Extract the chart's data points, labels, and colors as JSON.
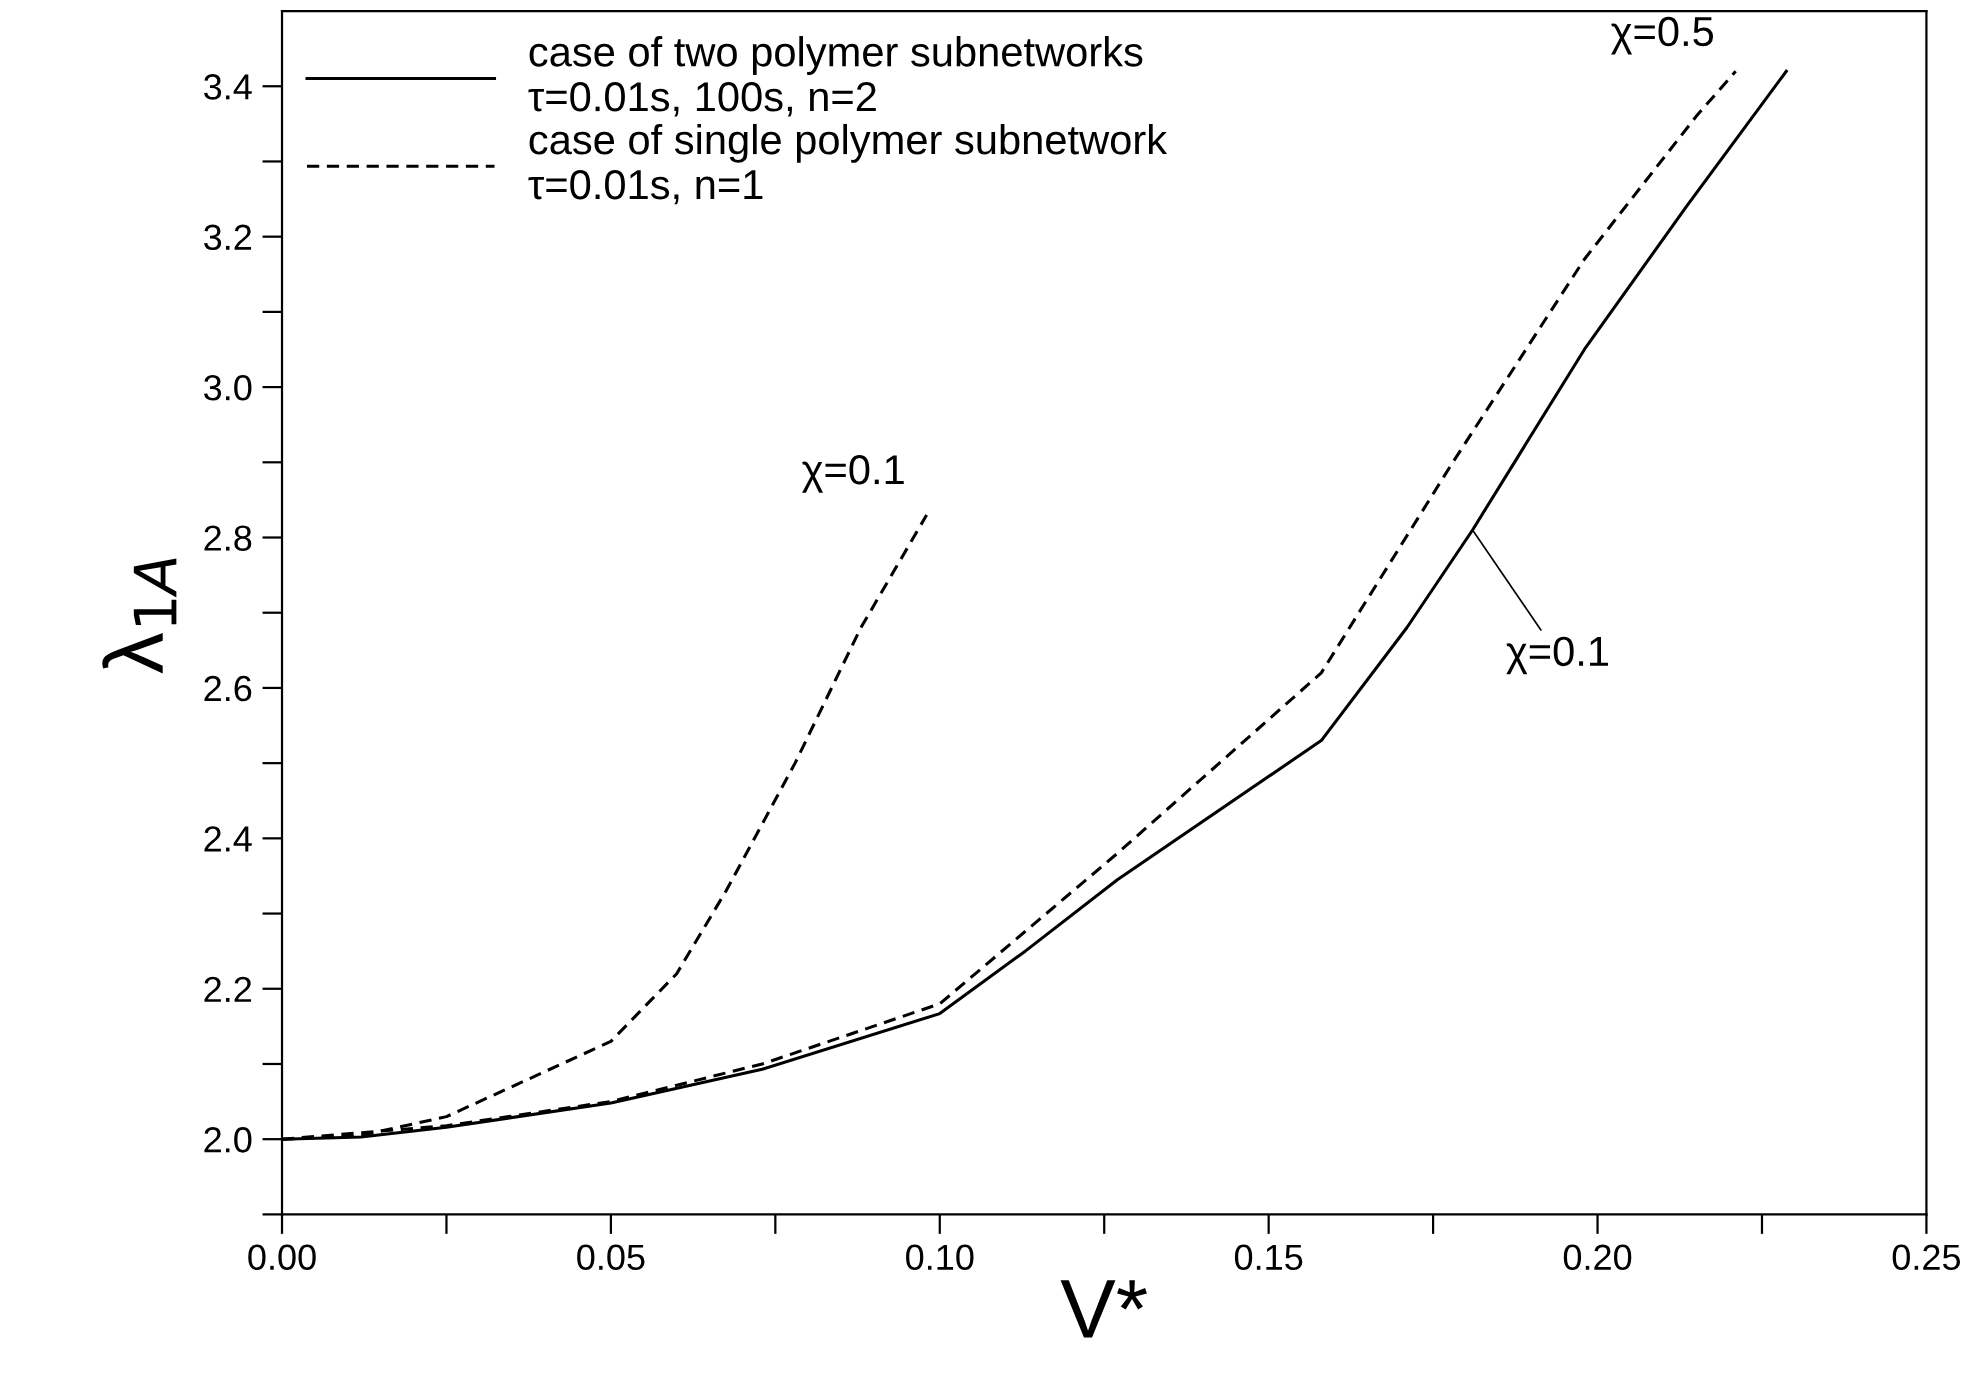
{
  "chart_data": {
    "type": "line",
    "xlabel": "V*",
    "ylabel": "λ$_{1A}$",
    "xlim": [
      0,
      0.25
    ],
    "ylim": [
      1.9,
      3.5
    ],
    "xticks": [
      {
        "value": 0,
        "label": "0.00"
      },
      {
        "value": 0.025,
        "label": null
      },
      {
        "value": 0.05,
        "label": "0.05"
      },
      {
        "value": 0.075,
        "label": null
      },
      {
        "value": 0.1,
        "label": "0.10"
      },
      {
        "value": 0.125,
        "label": null
      },
      {
        "value": 0.15,
        "label": "0.15"
      },
      {
        "value": 0.175,
        "label": null
      },
      {
        "value": 0.2,
        "label": "0.20"
      },
      {
        "value": 0.225,
        "label": null
      },
      {
        "value": 0.25,
        "label": "0.25"
      }
    ],
    "yticks": [
      {
        "value": 1.9,
        "label": null
      },
      {
        "value": 2.0,
        "label": "2.0"
      },
      {
        "value": 2.1,
        "label": null
      },
      {
        "value": 2.2,
        "label": "2.2"
      },
      {
        "value": 2.3,
        "label": null
      },
      {
        "value": 2.4,
        "label": "2.4"
      },
      {
        "value": 2.5,
        "label": null
      },
      {
        "value": 2.6,
        "label": "2.6"
      },
      {
        "value": 2.7,
        "label": null
      },
      {
        "value": 2.8,
        "label": "2.8"
      },
      {
        "value": 2.9,
        "label": null
      },
      {
        "value": 3.0,
        "label": "3.0"
      },
      {
        "value": 3.1,
        "label": null
      },
      {
        "value": 3.2,
        "label": "3.2"
      },
      {
        "value": 3.3,
        "label": null
      },
      {
        "value": 3.4,
        "label": "3.4"
      }
    ],
    "grid": false,
    "legend": "top left",
    "marker": "none",
    "series": [
      {
        "name": "case of two polymer subnetworks\nτ=0.01s, 100s, n=2",
        "color": "#000000",
        "line_style": "solid",
        "x": [
          0,
          0.012,
          0.025,
          0.05,
          0.073,
          0.1,
          0.113,
          0.127,
          0.158,
          0.171,
          0.181,
          0.198,
          0.2135,
          0.2287
        ],
        "values": [
          2.0,
          2.003,
          2.016,
          2.048,
          2.093,
          2.167,
          2.25,
          2.345,
          2.53,
          2.68,
          2.81,
          3.05,
          3.24,
          3.42
        ]
      },
      {
        "name": "case of single polymer subnetwork\nτ=0.01s, n=1",
        "color": "#000000",
        "line_style": "dashed",
        "x": [
          0,
          0.012,
          0.025,
          0.05,
          0.06,
          0.0675,
          0.078,
          0.088,
          0.098
        ],
        "values": [
          2.0,
          2.005,
          2.03,
          2.13,
          2.22,
          2.33,
          2.5,
          2.68,
          2.83
        ]
      },
      {
        "color": "#000000",
        "line_style": "dashed",
        "x": [
          0,
          0.025,
          0.05,
          0.073,
          0.1,
          0.127,
          0.158,
          0.178,
          0.198,
          0.215,
          0.221
        ],
        "values": [
          2.0,
          2.018,
          2.05,
          2.1,
          2.18,
          2.38,
          2.62,
          2.9,
          3.17,
          3.36,
          3.42
        ]
      }
    ],
    "annotations": [
      {
        "text": "χ=0.1",
        "x": 0.098,
        "y": 2.83
      },
      {
        "text": "χ=0.5",
        "x": 0.221,
        "y": 3.42
      },
      {
        "text": "χ=0.1",
        "x": 0.181,
        "y": 2.81
      }
    ]
  }
}
